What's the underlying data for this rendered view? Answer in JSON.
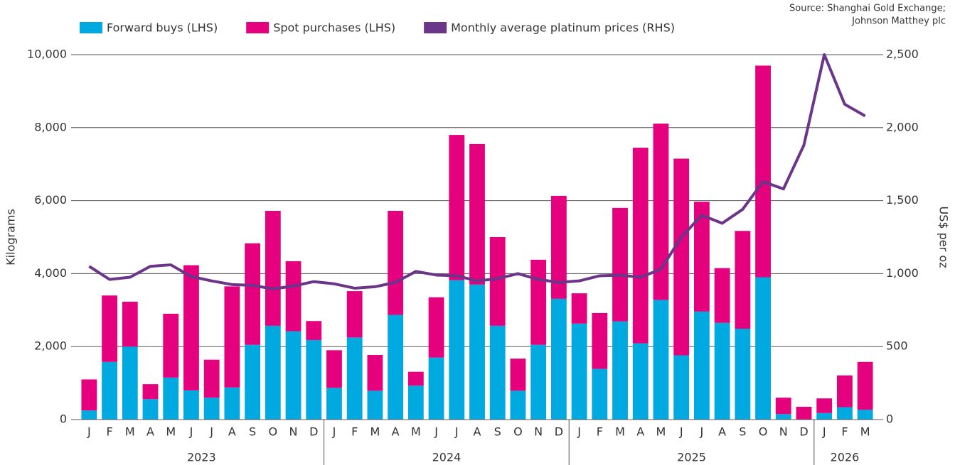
{
  "chart_data": {
    "type": "stacked_bar_line",
    "source": [
      "Source: Shanghai Gold Exchange;",
      "Johnson Matthey plc"
    ],
    "y_label": "Kilograms",
    "y2_label": "US$ per oz",
    "categories": [
      "J",
      "F",
      "M",
      "A",
      "M",
      "J",
      "J",
      "A",
      "S",
      "O",
      "N",
      "D",
      "J",
      "F",
      "M",
      "A",
      "M",
      "J",
      "J",
      "A",
      "S",
      "O",
      "N",
      "D",
      "J",
      "F",
      "M",
      "A",
      "M",
      "J",
      "J",
      "A",
      "S",
      "O",
      "N",
      "D",
      "J",
      "F",
      "M"
    ],
    "year_groups": [
      {
        "label": "2023",
        "count": 12
      },
      {
        "label": "2024",
        "count": 12
      },
      {
        "label": "2025",
        "count": 12
      },
      {
        "label": "2026",
        "count": 3
      }
    ],
    "series": [
      {
        "name": "Forward buys (LHS)",
        "color": "#00a9e0",
        "kind": "bar",
        "values": [
          250,
          1580,
          2000,
          560,
          1150,
          800,
          600,
          880,
          2050,
          2570,
          2420,
          2180,
          870,
          2250,
          790,
          2870,
          930,
          1700,
          3820,
          3700,
          2570,
          790,
          2050,
          3310,
          2630,
          1390,
          2690,
          2090,
          3280,
          1760,
          2960,
          2650,
          2490,
          3900,
          150,
          0,
          180,
          340,
          270
        ]
      },
      {
        "name": "Spot purchases (LHS)",
        "color": "#e5007e",
        "kind": "bar",
        "values": [
          850,
          1820,
          1230,
          410,
          1750,
          3430,
          1040,
          2770,
          2780,
          3150,
          1920,
          520,
          1030,
          1270,
          980,
          2850,
          380,
          1650,
          3980,
          3850,
          2430,
          880,
          2330,
          2820,
          830,
          1530,
          3110,
          5360,
          4830,
          5390,
          3010,
          1500,
          2680,
          5800,
          450,
          350,
          400,
          870,
          1310
        ]
      },
      {
        "name": "Monthly average platinum prices (RHS)",
        "color": "#6b3589",
        "kind": "line",
        "axis": "y2",
        "values": [
          1050,
          960,
          975,
          1050,
          1060,
          980,
          950,
          925,
          920,
          895,
          915,
          945,
          930,
          900,
          910,
          940,
          1015,
          990,
          985,
          950,
          965,
          1000,
          960,
          940,
          950,
          985,
          990,
          975,
          1030,
          1250,
          1400,
          1345,
          1440,
          1630,
          1580,
          1880,
          2500,
          2160,
          2080
        ]
      }
    ],
    "ylim": [
      0,
      10000
    ],
    "yticks": [
      0,
      {
        "value": 2000,
        "label": "2,000"
      },
      {
        "value": 4000,
        "label": "4,000"
      },
      {
        "value": 6000,
        "label": "6,000"
      },
      {
        "value": 8000,
        "label": "8,000"
      },
      {
        "value": 10000,
        "label": "10,000"
      }
    ],
    "y2lim": [
      0,
      2500
    ],
    "y2ticks": [
      0,
      500,
      {
        "value": 1000,
        "label": "1,000"
      },
      {
        "value": 1500,
        "label": "1,500"
      },
      {
        "value": 2000,
        "label": "2,000"
      },
      {
        "value": 2500,
        "label": "2,500"
      }
    ],
    "grid": true
  }
}
